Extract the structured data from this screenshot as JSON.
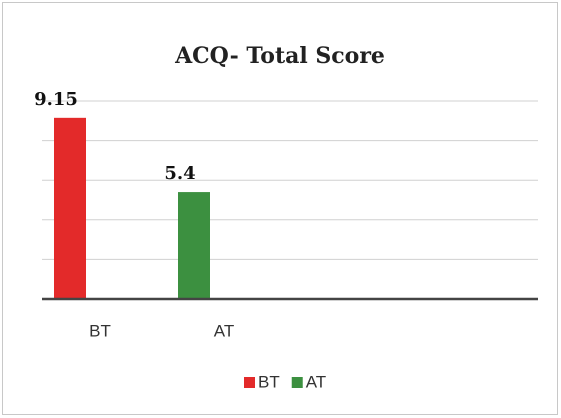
{
  "chart_data": {
    "type": "bar",
    "title": "ACQ- Total Score",
    "categories": [
      "BT",
      "AT"
    ],
    "values": [
      9.15,
      5.4
    ],
    "colors": [
      "#e32a2a",
      "#3c9040"
    ],
    "ylim": [
      0,
      10
    ],
    "yticks": [
      0,
      2,
      4,
      6,
      8,
      10
    ],
    "grid": true
  }
}
